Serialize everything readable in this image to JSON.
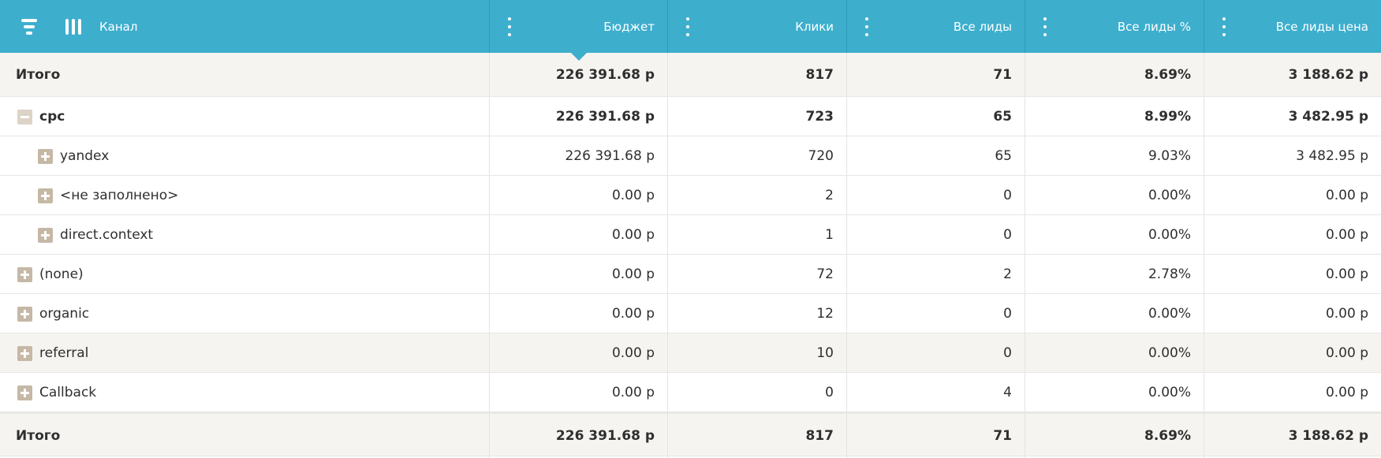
{
  "colors": {
    "header_bg": "#3eaecd",
    "total_bg": "#f5f4f0",
    "toggle": "#c6b8a6"
  },
  "header": {
    "icons": [
      "menu-icon",
      "columns-icon",
      "kebab-icon"
    ],
    "columns": [
      "Канал",
      "Бюджет",
      "Клики",
      "Все лиды",
      "Все лиды %",
      "Все лиды цена"
    ],
    "sorted_column": "Бюджет"
  },
  "totals_top": {
    "label": "Итого",
    "values": [
      "226 391.68 р",
      "817",
      "71",
      "8.69%",
      "3 188.62 р"
    ]
  },
  "rows": [
    {
      "label": "cpc",
      "level": 0,
      "toggle": "minus",
      "bold": true,
      "values": [
        "226 391.68 р",
        "723",
        "65",
        "8.99%",
        "3 482.95 р"
      ]
    },
    {
      "label": "yandex",
      "level": 1,
      "toggle": "plus",
      "bold": false,
      "values": [
        "226 391.68 р",
        "720",
        "65",
        "9.03%",
        "3 482.95 р"
      ]
    },
    {
      "label": "<не заполнено>",
      "level": 1,
      "toggle": "plus",
      "bold": false,
      "values": [
        "0.00 р",
        "2",
        "0",
        "0.00%",
        "0.00 р"
      ]
    },
    {
      "label": "direct.context",
      "level": 1,
      "toggle": "plus",
      "bold": false,
      "values": [
        "0.00 р",
        "1",
        "0",
        "0.00%",
        "0.00 р"
      ]
    },
    {
      "label": "(none)",
      "level": 0,
      "toggle": "plus",
      "bold": false,
      "values": [
        "0.00 р",
        "72",
        "2",
        "2.78%",
        "0.00 р"
      ]
    },
    {
      "label": "organic",
      "level": 0,
      "toggle": "plus",
      "bold": false,
      "values": [
        "0.00 р",
        "12",
        "0",
        "0.00%",
        "0.00 р"
      ]
    },
    {
      "label": "referral",
      "level": 0,
      "toggle": "plus",
      "bold": false,
      "tinted": true,
      "values": [
        "0.00 р",
        "10",
        "0",
        "0.00%",
        "0.00 р"
      ]
    },
    {
      "label": "Callback",
      "level": 0,
      "toggle": "plus",
      "bold": false,
      "values": [
        "0.00 р",
        "0",
        "4",
        "0.00%",
        "0.00 р"
      ]
    }
  ],
  "totals_bottom": {
    "label": "Итого",
    "values": [
      "226 391.68 р",
      "817",
      "71",
      "8.69%",
      "3 188.62 р"
    ]
  }
}
